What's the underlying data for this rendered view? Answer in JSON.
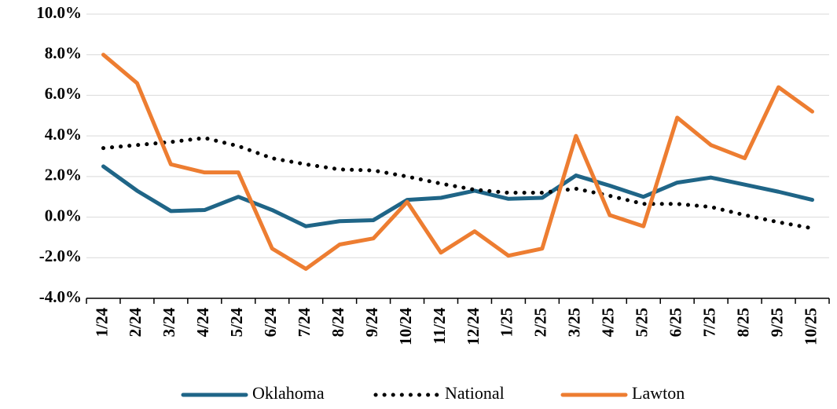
{
  "chart_data": {
    "type": "line",
    "categories": [
      "1/24",
      "2/24",
      "3/24",
      "4/24",
      "5/24",
      "6/24",
      "7/24",
      "8/24",
      "9/24",
      "10/24",
      "11/24",
      "12/24",
      "1/25",
      "2/25",
      "3/25",
      "4/25",
      "5/25",
      "6/25",
      "7/25",
      "8/25",
      "9/25",
      "10/25"
    ],
    "series": [
      {
        "name": "Oklahoma",
        "color": "#1f6587",
        "line_style": "solid",
        "values": [
          2.5,
          1.3,
          0.3,
          0.35,
          1.0,
          0.35,
          -0.45,
          -0.2,
          -0.15,
          0.85,
          0.95,
          1.3,
          0.9,
          0.95,
          2.05,
          1.55,
          1.0,
          1.7,
          1.95,
          1.6,
          1.25,
          0.85
        ]
      },
      {
        "name": "National",
        "color": "#000000",
        "line_style": "dotted",
        "values": [
          3.4,
          3.55,
          3.7,
          3.9,
          3.5,
          2.9,
          2.6,
          2.35,
          2.3,
          2.0,
          1.65,
          1.35,
          1.2,
          1.2,
          1.4,
          1.05,
          0.65,
          0.65,
          0.5,
          0.1,
          -0.25,
          -0.55
        ]
      },
      {
        "name": "Lawton",
        "color": "#ed7d31",
        "line_style": "solid",
        "values": [
          8.0,
          6.6,
          2.6,
          2.2,
          2.2,
          -1.55,
          -2.55,
          -1.35,
          -1.05,
          0.75,
          -1.75,
          -0.7,
          -1.9,
          -1.55,
          4.0,
          0.1,
          -0.45,
          4.9,
          3.55,
          2.9,
          6.4,
          5.2
        ]
      }
    ],
    "ylim": [
      -4,
      10
    ],
    "yticks": [
      {
        "value": -4,
        "label": "-4.0%"
      },
      {
        "value": -2,
        "label": "-2.0%"
      },
      {
        "value": 0,
        "label": "0.0%"
      },
      {
        "value": 2,
        "label": "2.0%"
      },
      {
        "value": 4,
        "label": "4.0%"
      },
      {
        "value": 6,
        "label": "6.0%"
      },
      {
        "value": 8,
        "label": "8.0%"
      },
      {
        "value": 10,
        "label": "10.0%"
      }
    ],
    "grid": true,
    "legend": "bottom"
  }
}
